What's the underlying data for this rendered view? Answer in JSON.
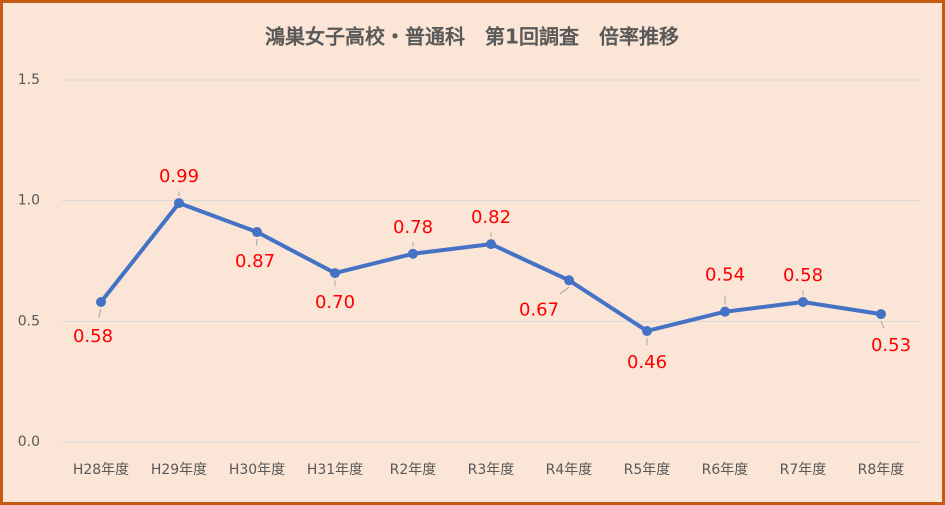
{
  "chart_data": {
    "type": "line",
    "title": "鴻巣女子高校・普通科　第1回調査　倍率推移",
    "categories": [
      "H28年度",
      "H29年度",
      "H30年度",
      "H31年度",
      "R2年度",
      "R3年度",
      "R4年度",
      "R5年度",
      "R6年度",
      "R7年度",
      "R8年度"
    ],
    "series": [
      {
        "name": "倍率",
        "color": "#4472c4",
        "values": [
          0.58,
          0.99,
          0.87,
          0.7,
          0.78,
          0.82,
          0.67,
          0.46,
          0.54,
          0.58,
          0.53
        ],
        "value_labels": [
          "0.58",
          "0.99",
          "0.87",
          "0.70",
          "0.78",
          "0.82",
          "0.67",
          "0.46",
          "0.54",
          "0.58",
          "0.53"
        ],
        "label_color": "#ff0000"
      }
    ],
    "ylim": [
      0,
      1.5
    ],
    "yticks": [
      {
        "value": 0,
        "label": "0.0"
      },
      0.5,
      {
        "value": 1,
        "label": "1.0"
      },
      1.5
    ],
    "grid": true
  }
}
